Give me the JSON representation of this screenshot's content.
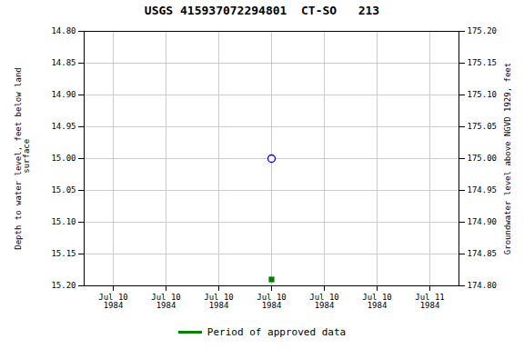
{
  "chart_data": {
    "type": "scatter",
    "title": "USGS 415937072294801  CT-SO   213",
    "categories": [
      "Jul 10\n1984",
      "Jul 10\n1984",
      "Jul 10\n1984",
      "Jul 10\n1984",
      "Jul 10\n1984",
      "Jul 10\n1984",
      "Jul 11\n1984"
    ],
    "series": [
      {
        "color": "blue",
        "marker": "circle",
        "values": [
          null,
          null,
          null,
          15.0,
          null,
          null,
          null
        ]
      },
      {
        "name": "Period of approved data",
        "color": "green",
        "marker": "square",
        "values": [
          null,
          null,
          null,
          15.19,
          null,
          null,
          null
        ]
      }
    ],
    "ylabel": "Depth to water level, feet below land\n surface",
    "y2label": "Groundwater level above NGVD 1929, feet",
    "ylim": [
      15.2,
      14.8
    ],
    "yticks": [
      {
        "value": 14.8,
        "label": "14.80"
      },
      {
        "value": 14.85,
        "label": "14.85"
      },
      {
        "value": 14.9,
        "label": "14.90"
      },
      {
        "value": 14.95,
        "label": "14.95"
      },
      {
        "value": 15.0,
        "label": "15.00"
      },
      {
        "value": 15.05,
        "label": "15.05"
      },
      {
        "value": 15.1,
        "label": "15.10"
      },
      {
        "value": 15.15,
        "label": "15.15"
      },
      {
        "value": 15.2,
        "label": "15.20"
      }
    ],
    "y2lim": [
      174.8,
      175.2
    ],
    "y2ticks": [
      {
        "value": 175.2,
        "label": "175.20"
      },
      {
        "value": 175.15,
        "label": "175.15"
      },
      {
        "value": 175.1,
        "label": "175.10"
      },
      {
        "value": 175.05,
        "label": "175.05"
      },
      {
        "value": 175.0,
        "label": "175.00"
      },
      {
        "value": 174.95,
        "label": "174.95"
      },
      {
        "value": 174.9,
        "label": "174.90"
      },
      {
        "value": 174.85,
        "label": "174.85"
      },
      {
        "value": 174.8,
        "label": "174.80"
      }
    ],
    "grid": true,
    "legend": "bottom"
  }
}
